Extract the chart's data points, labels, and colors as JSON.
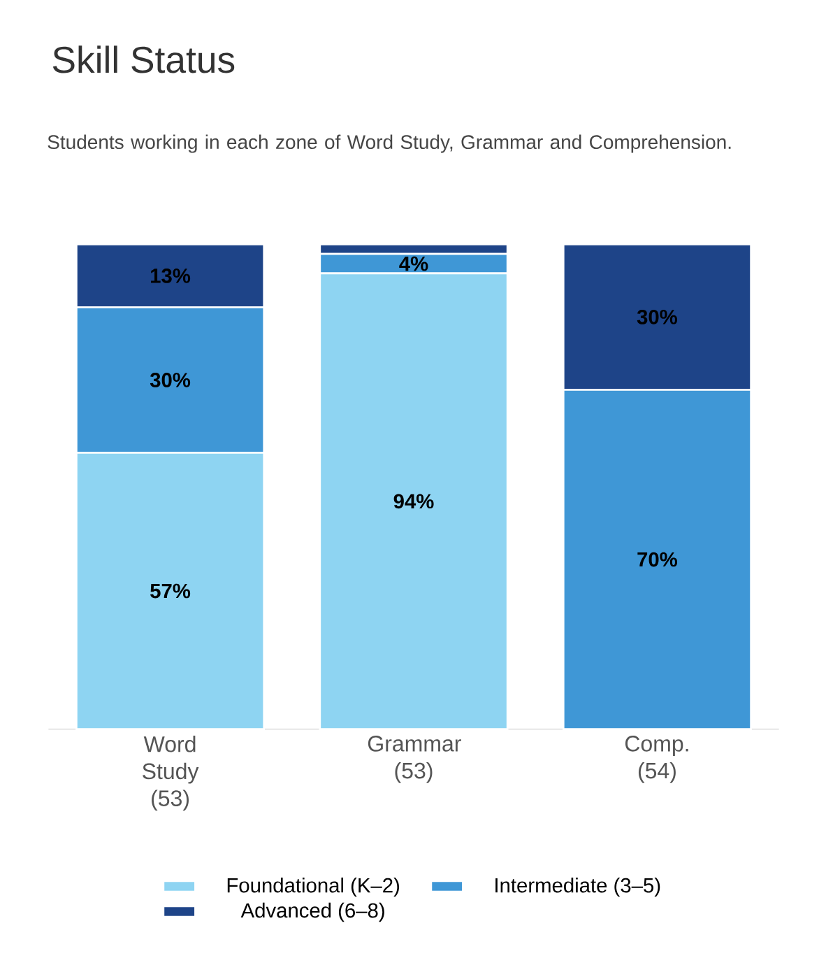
{
  "chart_data": {
    "type": "bar",
    "stacked": true,
    "title": "Skill Status",
    "subtitle": "Students working in each zone of Word Study, Grammar and Comprehension.",
    "categories": [
      "Word Study (53)",
      "Grammar (53)",
      "Comp. (54)"
    ],
    "series": [
      {
        "name": "Foundational (K–2)",
        "color": "#8ed4f2",
        "values": [
          57,
          94,
          0
        ],
        "value_labels": [
          "57%",
          "94%",
          null
        ]
      },
      {
        "name": "Intermediate (3–5)",
        "color": "#3f97d6",
        "values": [
          30,
          4,
          70
        ],
        "value_labels": [
          "30%",
          "4%",
          "70%"
        ]
      },
      {
        "name": "Advanced (6–8)",
        "color": "#1e4488",
        "values": [
          13,
          2,
          30
        ],
        "value_labels": [
          "13%",
          null,
          "30%"
        ]
      }
    ],
    "ylim": [
      0,
      100
    ],
    "legend": "bottom",
    "tick_labels": "x"
  }
}
